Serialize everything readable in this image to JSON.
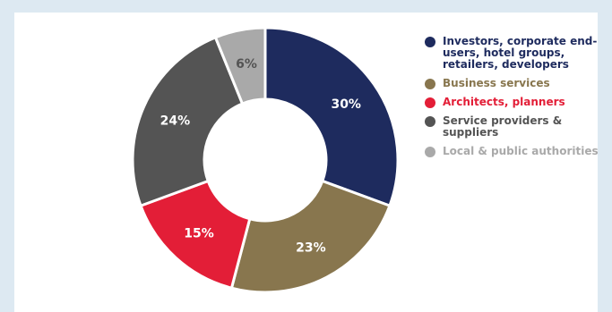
{
  "chart_data": {
    "type": "pie",
    "style": "donut",
    "legend_position": "right",
    "series": [
      {
        "name": "Investors, corporate end-users, hotel groups, retailers, developers",
        "value": 30,
        "label": "30%",
        "color": "#1e2b5e",
        "label_color": "#ffffff",
        "legend_text_color": "#1e2b5e"
      },
      {
        "name": "Business services",
        "value": 23,
        "label": "23%",
        "color": "#88764e",
        "label_color": "#ffffff",
        "legend_text_color": "#88764e"
      },
      {
        "name": "Architects, planners",
        "value": 15,
        "label": "15%",
        "color": "#e31e37",
        "label_color": "#ffffff",
        "legend_text_color": "#e31e37"
      },
      {
        "name": "Service providers & suppliers",
        "value": 24,
        "label": "24%",
        "color": "#545454",
        "label_color": "#ffffff",
        "legend_text_color": "#545454"
      },
      {
        "name": "Local & public authorities",
        "value": 6,
        "label": "6%",
        "color": "#a9a9a9",
        "label_color": "#545454",
        "legend_text_color": "#a9a9a9"
      }
    ]
  }
}
